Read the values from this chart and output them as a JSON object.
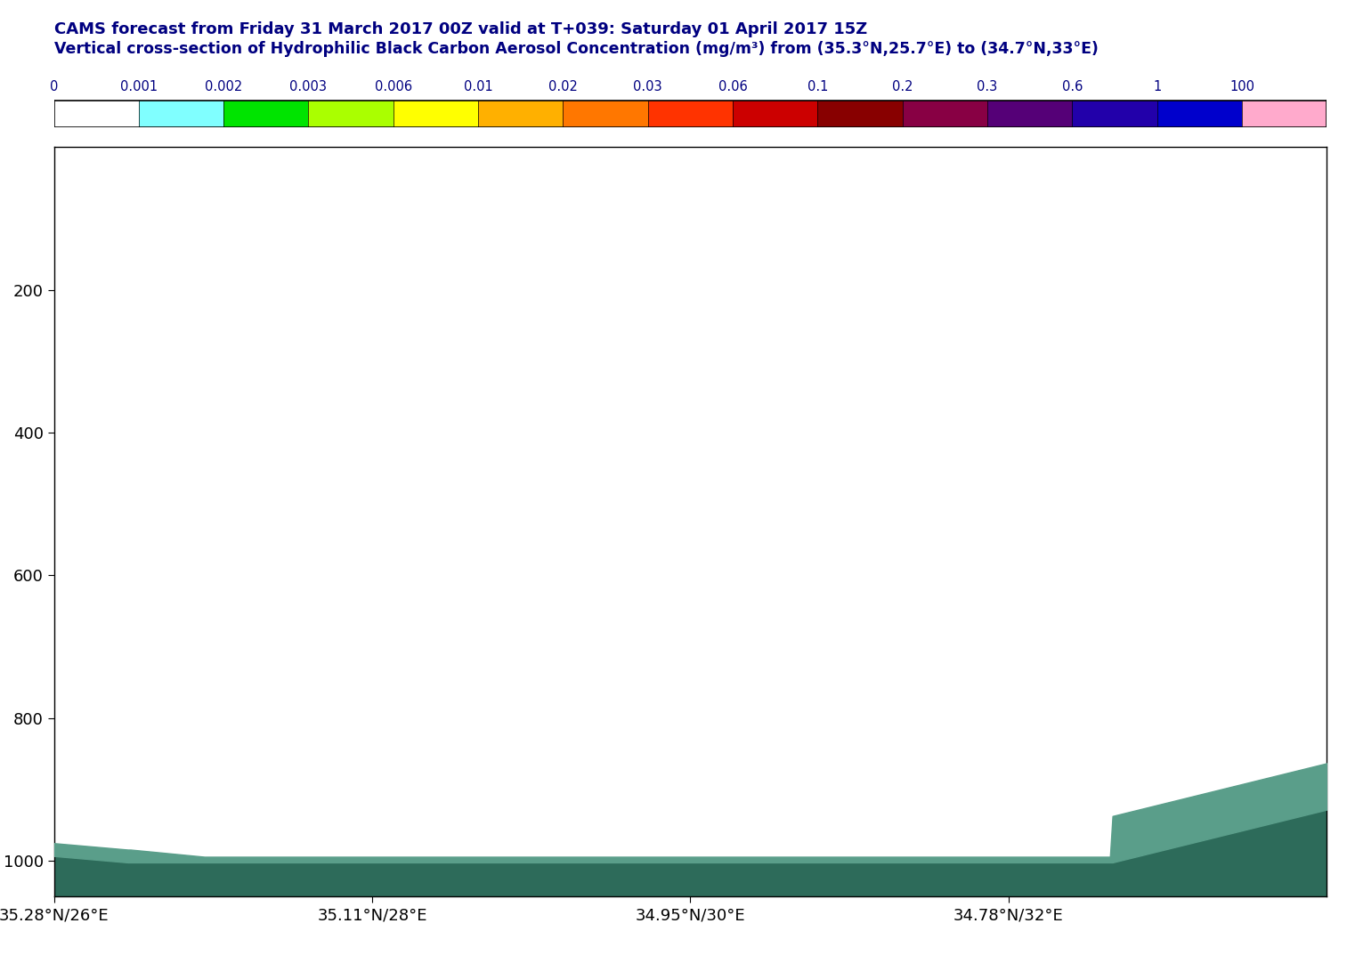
{
  "title1": "CAMS forecast from Friday 31 March 2017 00Z valid at T+039: Saturday 01 April 2017 15Z",
  "title2": "Vertical cross-section of Hydrophilic Black Carbon Aerosol Concentration (mg/m³) from (35.3°N,25.7°E) to (34.7°N,33°E)",
  "title_color": "#000080",
  "colorbar_labels": [
    "0",
    "0.001",
    "0.002",
    "0.003",
    "0.006",
    "0.01",
    "0.02",
    "0.03",
    "0.06",
    "0.1",
    "0.2",
    "0.3",
    "0.6",
    "1",
    "100"
  ],
  "colorbar_colors": [
    "#FFFFFF",
    "#80FFFF",
    "#00E400",
    "#AAFF00",
    "#FFFF00",
    "#FFB000",
    "#FF7700",
    "#FF3300",
    "#CC0000",
    "#880000",
    "#880044",
    "#550077",
    "#2200AA",
    "#0000CC",
    "#FFAACC"
  ],
  "xlabels": [
    "35.28°N/26°E",
    "35.11°N/28°E",
    "34.95°N/30°E",
    "34.78°N/32°E"
  ],
  "xtick_pos": [
    0.0,
    0.25,
    0.5,
    0.75
  ],
  "yticks": [
    200,
    400,
    600,
    800,
    1000
  ],
  "background_color": "#FFFFFF",
  "surface_color_dark": "#2D6B5A",
  "surface_color_light": "#5A9E8A",
  "n_points": 500
}
